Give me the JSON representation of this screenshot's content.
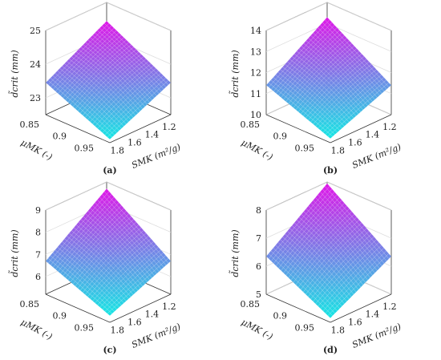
{
  "chart_data": [
    {
      "type": "surface",
      "panel_label": "(a)",
      "zlabel": "d̃crit (mm)",
      "xlabel": "μMK (-)",
      "ylabel": "SMK (m²/g)",
      "x_ticks": [
        "0.85",
        "0.9",
        "0.95"
      ],
      "y_ticks": [
        "1.8",
        "1.6",
        "1.4",
        "1.2"
      ],
      "z_ticks": [
        "23",
        "24",
        "25"
      ],
      "zlim": [
        22.5,
        25
      ],
      "x": [
        0.85,
        0.95
      ],
      "y": [
        1.15,
        1.85
      ],
      "z_corners": {
        "front": 22.6,
        "left": 23.45,
        "right": 23.45,
        "back": 24.45
      },
      "colormap": [
        "#16e6e4",
        "#e016e8"
      ]
    },
    {
      "type": "surface",
      "panel_label": "(b)",
      "zlabel": "d̃crit (mm)",
      "xlabel": "μMK (-)",
      "ylabel": "SMK (m²/g)",
      "x_ticks": [
        "0.85",
        "0.9",
        "0.95"
      ],
      "y_ticks": [
        "1.8",
        "1.6",
        "1.4",
        "1.2"
      ],
      "z_ticks": [
        "10",
        "11",
        "12",
        "13",
        "14"
      ],
      "zlim": [
        10,
        14
      ],
      "x": [
        0.85,
        0.95
      ],
      "y": [
        1.15,
        1.85
      ],
      "z_corners": {
        "front": 10.2,
        "left": 11.4,
        "right": 11.4,
        "back": 13.3
      },
      "colormap": [
        "#16e6e4",
        "#e016e8"
      ]
    },
    {
      "type": "surface",
      "panel_label": "(c)",
      "zlabel": "d̃crit (mm)",
      "xlabel": "μMK (-)",
      "ylabel": "SMK (m²/g)",
      "x_ticks": [
        "0.85",
        "0.9",
        "0.95"
      ],
      "y_ticks": [
        "1.8",
        "1.6",
        "1.4",
        "1.2"
      ],
      "z_ticks": [
        "6",
        "7",
        "8",
        "9"
      ],
      "zlim": [
        5.2,
        9
      ],
      "x": [
        0.85,
        0.95
      ],
      "y": [
        1.15,
        1.85
      ],
      "z_corners": {
        "front": 5.5,
        "left": 6.7,
        "right": 6.7,
        "back": 8.7
      },
      "colormap": [
        "#16e6e4",
        "#e016e8"
      ]
    },
    {
      "type": "surface",
      "panel_label": "(d)",
      "zlabel": "d̃crit (mm)",
      "xlabel": "μMK (-)",
      "ylabel": "SMK (m²/g)",
      "x_ticks": [
        "0.85",
        "0.9",
        "0.95"
      ],
      "y_ticks": [
        "1.8",
        "1.6",
        "1.4",
        "1.2"
      ],
      "z_ticks": [
        "5",
        "6",
        "7",
        "8"
      ],
      "zlim": [
        5,
        8
      ],
      "x": [
        0.85,
        0.95
      ],
      "y": [
        1.15,
        1.85
      ],
      "z_corners": {
        "front": 5.15,
        "left": 6.35,
        "right": 6.35,
        "back": 7.95
      },
      "colormap": [
        "#16e6e4",
        "#e016e8"
      ]
    }
  ]
}
